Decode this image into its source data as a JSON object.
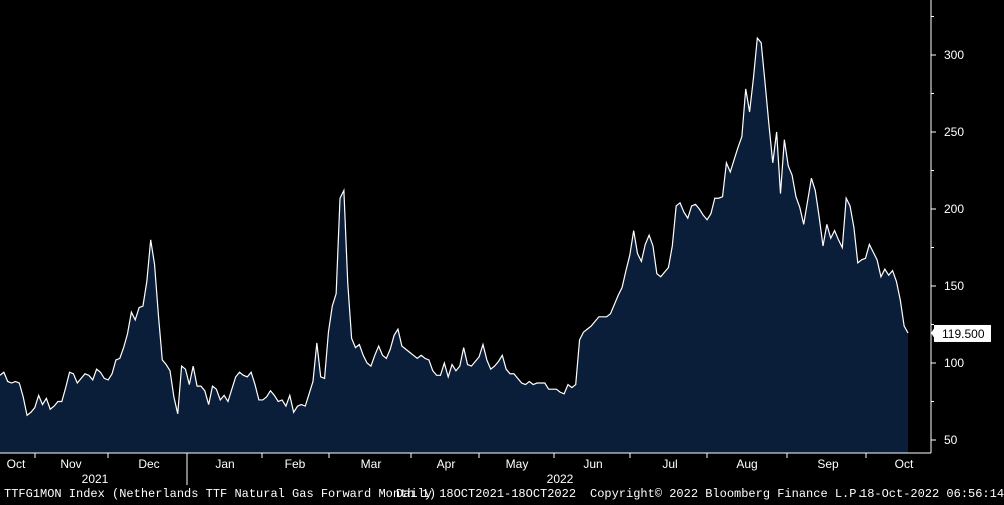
{
  "chart_data": {
    "type": "area",
    "title": "",
    "ylim": [
      35,
      330
    ],
    "y_ticks": [
      50,
      100,
      150,
      200,
      250,
      300
    ],
    "y_tick_labels": [
      "50",
      "100",
      "150",
      "200",
      "250",
      "300"
    ],
    "x_month_labels": [
      "Oct",
      "Nov",
      "Dec",
      "Jan",
      "Feb",
      "Mar",
      "Apr",
      "May",
      "Jun",
      "Jul",
      "Aug",
      "Sep",
      "Oct"
    ],
    "x_year_labels": [
      "2021",
      "2022"
    ],
    "last_value_label": "119.500",
    "series": [
      {
        "values": [
          92,
          94,
          88,
          87,
          88,
          87,
          78,
          66,
          68,
          71,
          79,
          73,
          77,
          70,
          72,
          75,
          75,
          84,
          94,
          93,
          87,
          90,
          93,
          92,
          89,
          96,
          94,
          90,
          89,
          93,
          102,
          103,
          110,
          119,
          133,
          128,
          136,
          137,
          153,
          180,
          164,
          131,
          102,
          99,
          95,
          78,
          67,
          98,
          96,
          86,
          98,
          85,
          85,
          82,
          73,
          85,
          83,
          76,
          79,
          75,
          83,
          91,
          94,
          92,
          91,
          94,
          86,
          76,
          76,
          78,
          82,
          79,
          75,
          76,
          72,
          79,
          68,
          72,
          73,
          72,
          80,
          88,
          113,
          91,
          90,
          120,
          137,
          145,
          207,
          212,
          152,
          116,
          110,
          112,
          105,
          100,
          98,
          105,
          111,
          105,
          103,
          109,
          118,
          122,
          111,
          109,
          107,
          105,
          103,
          105,
          103,
          102,
          95,
          92,
          92,
          100,
          91,
          99,
          95,
          98,
          110,
          99,
          98,
          101,
          104,
          112,
          102,
          96,
          98,
          101,
          105,
          96,
          93,
          93,
          90,
          87,
          86,
          88,
          86,
          87,
          87,
          87,
          83,
          83,
          83,
          81,
          80,
          86,
          84,
          86,
          115,
          120,
          122,
          124,
          127,
          130,
          130,
          130,
          132,
          138,
          144,
          149,
          160,
          170,
          186,
          171,
          166,
          177,
          183,
          176,
          158,
          156,
          159,
          162,
          176,
          202,
          204,
          198,
          194,
          202,
          203,
          200,
          196,
          193,
          197,
          207,
          207,
          208,
          230,
          224,
          232,
          240,
          247,
          278,
          263,
          285,
          311,
          308,
          282,
          255,
          230,
          250,
          210,
          245,
          228,
          222,
          208,
          201,
          190,
          205,
          220,
          212,
          195,
          176,
          190,
          181,
          186,
          180,
          175,
          207,
          202,
          188,
          165,
          167,
          168,
          177,
          172,
          167,
          156,
          161,
          157,
          160,
          153,
          141,
          124,
          119.5
        ]
      }
    ]
  },
  "footer": {
    "ticker": "TTFG1MON Index (Netherlands TTF Natural Gas Forward Month 1)",
    "range": "Daily 18OCT2021-18OCT2022",
    "copyright": "Copyright© 2022 Bloomberg Finance L.P.",
    "timestamp": "18-Oct-2022 06:56:14"
  },
  "colors": {
    "background": "#000000",
    "area_fill": "#0a1e3a",
    "line": "#ffffff",
    "last_box": "#ffffff"
  }
}
